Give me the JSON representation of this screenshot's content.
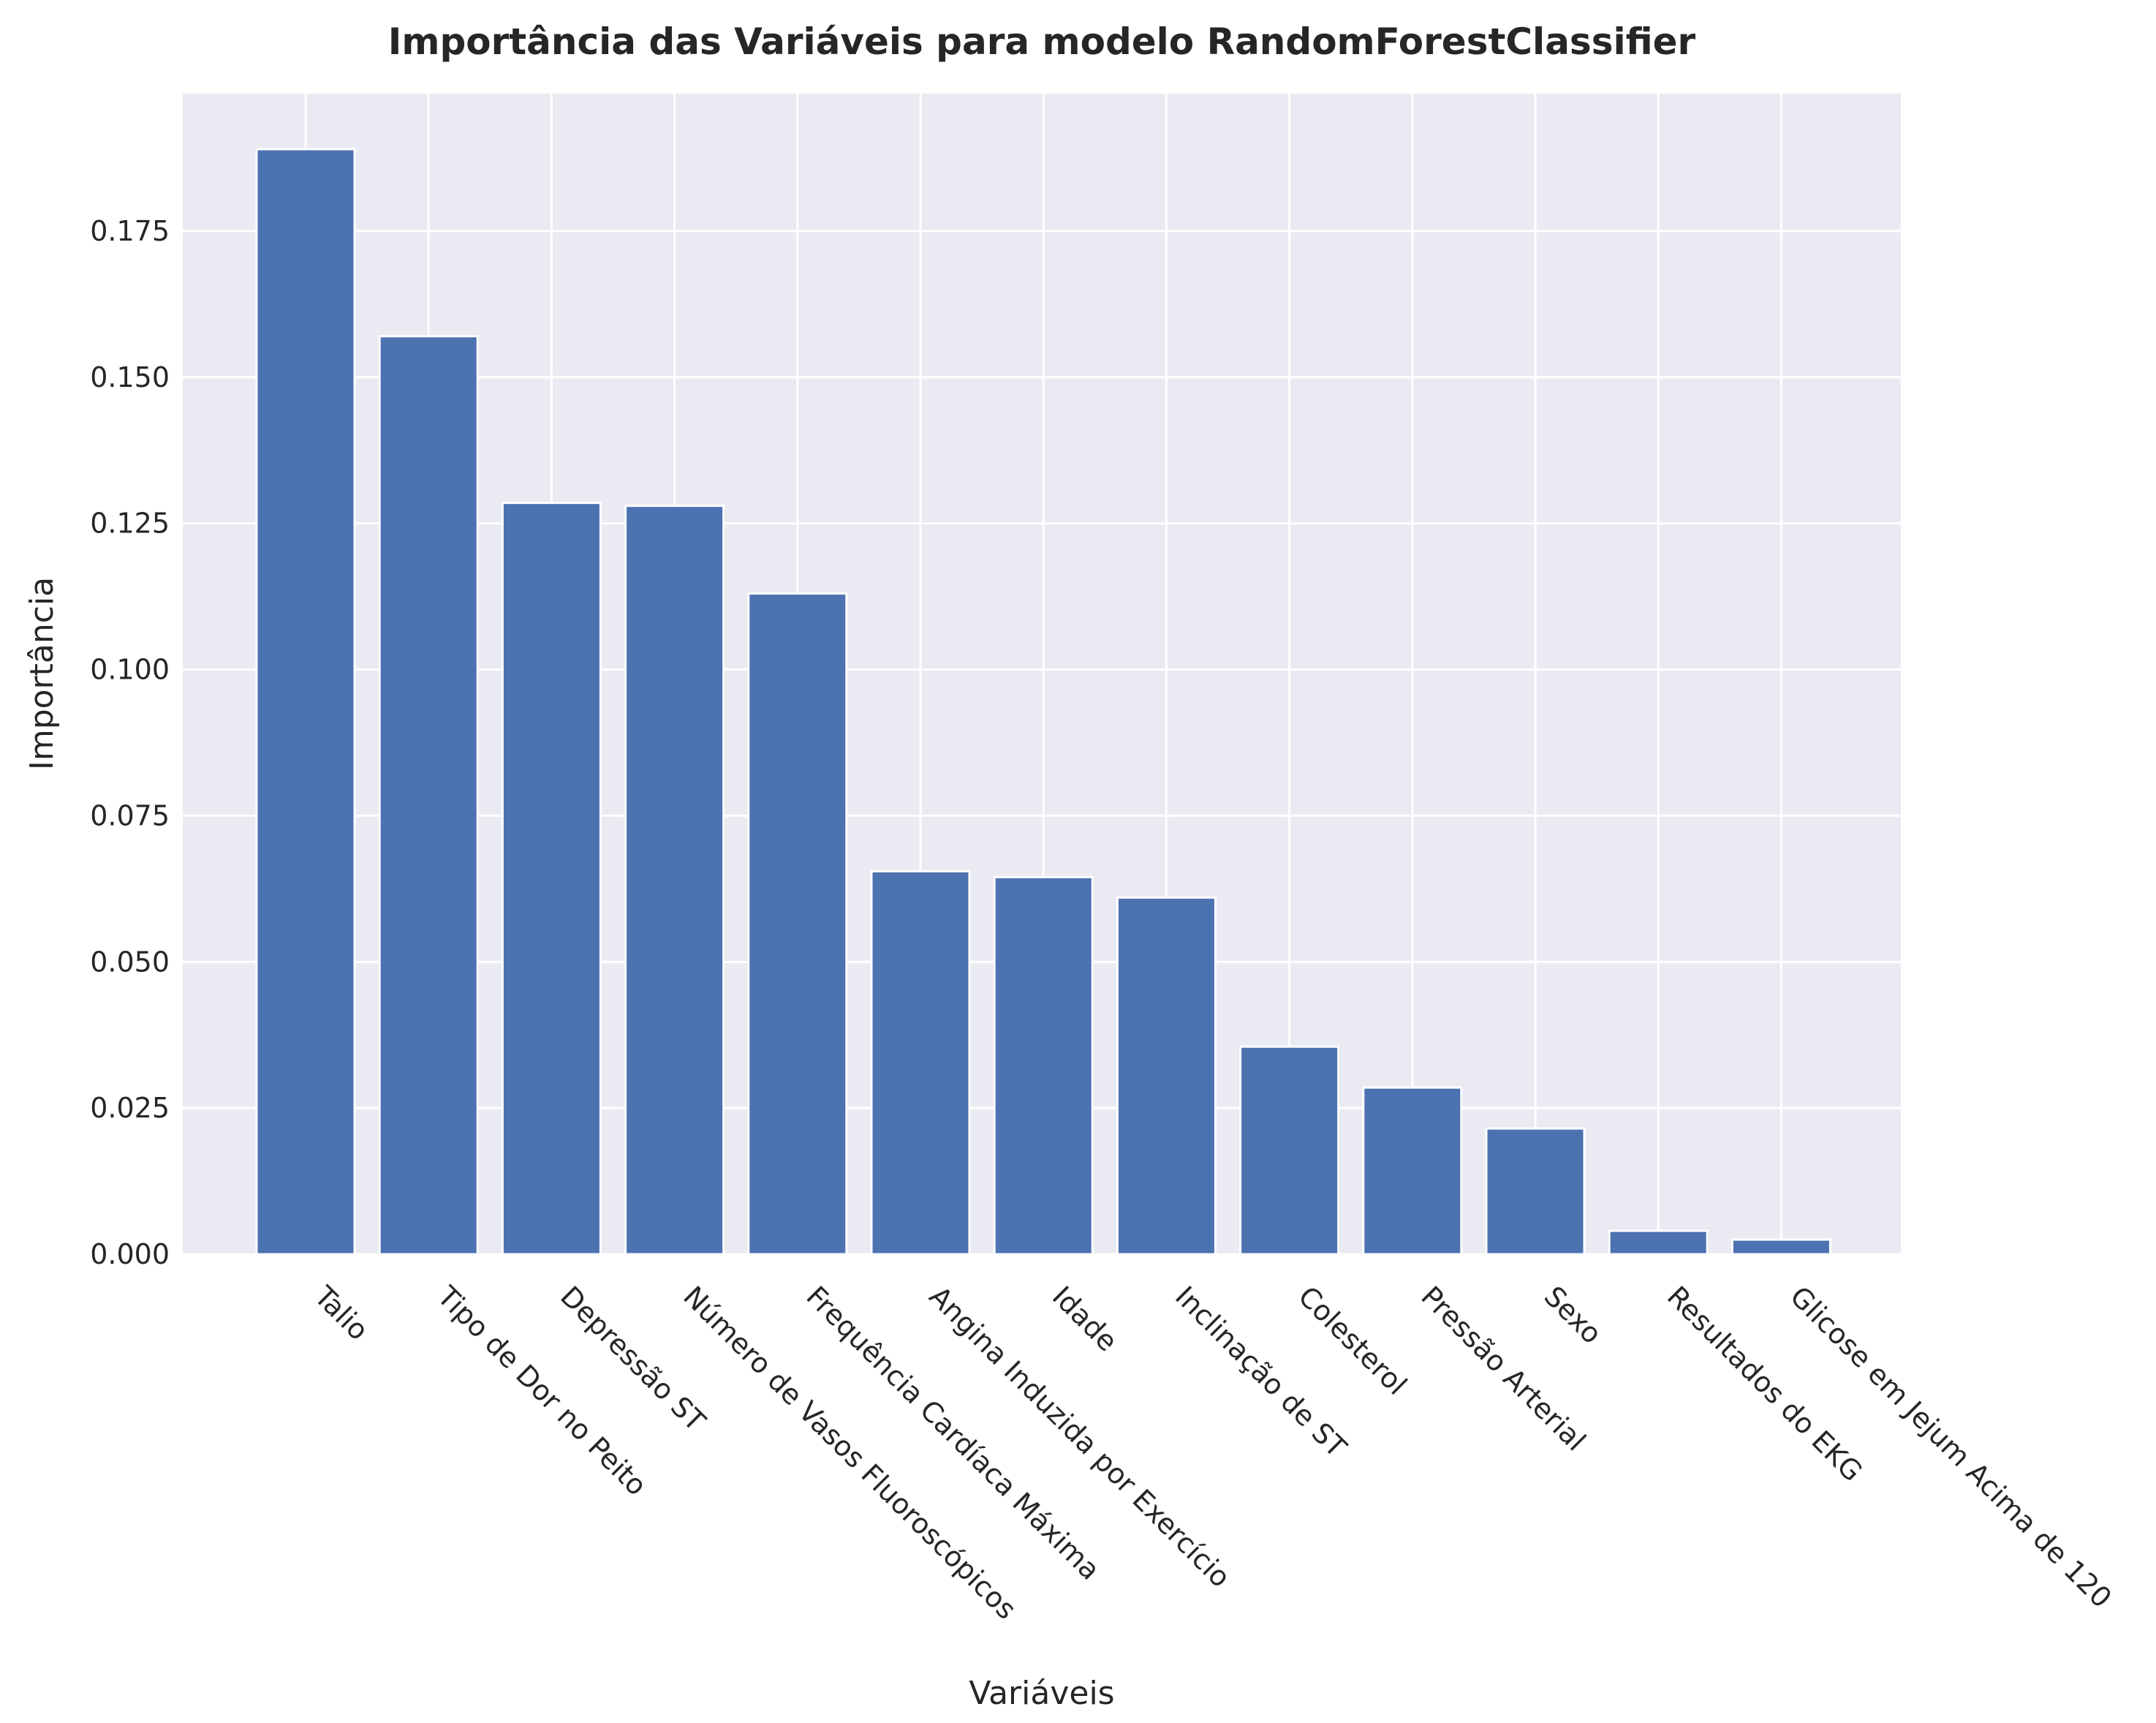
{
  "chart_data": {
    "type": "bar",
    "title": "Importância das Variáveis para modelo RandomForestClassifier",
    "xlabel": "Variáveis",
    "ylabel": "Importância",
    "categories": [
      "Talio",
      "Tipo de Dor no Peito",
      "Depressão ST",
      "Número de Vasos Fluoroscópicos",
      "Frequência Cardíaca Máxima",
      "Angina Induzida por Exercício",
      "Idade",
      "Inclinação de ST",
      "Colesterol",
      "Pressão Arterial",
      "Sexo",
      "Resultados do EKG",
      "Glicose em Jejum Acima de 120"
    ],
    "values": [
      0.189,
      0.157,
      0.1285,
      0.128,
      0.113,
      0.0655,
      0.0645,
      0.061,
      0.0355,
      0.0285,
      0.0215,
      0.004,
      0.0025
    ],
    "ylim": [
      0,
      0.1985
    ],
    "yticks": [
      "0.000",
      "0.025",
      "0.050",
      "0.075",
      "0.100",
      "0.125",
      "0.150",
      "0.175"
    ],
    "tick_label_rotation_deg": 45,
    "grid": true,
    "colors": {
      "bar": "#4c72b0",
      "plot_background": "#eaeaf2",
      "grid": "#ffffff",
      "text": "#262626"
    }
  }
}
